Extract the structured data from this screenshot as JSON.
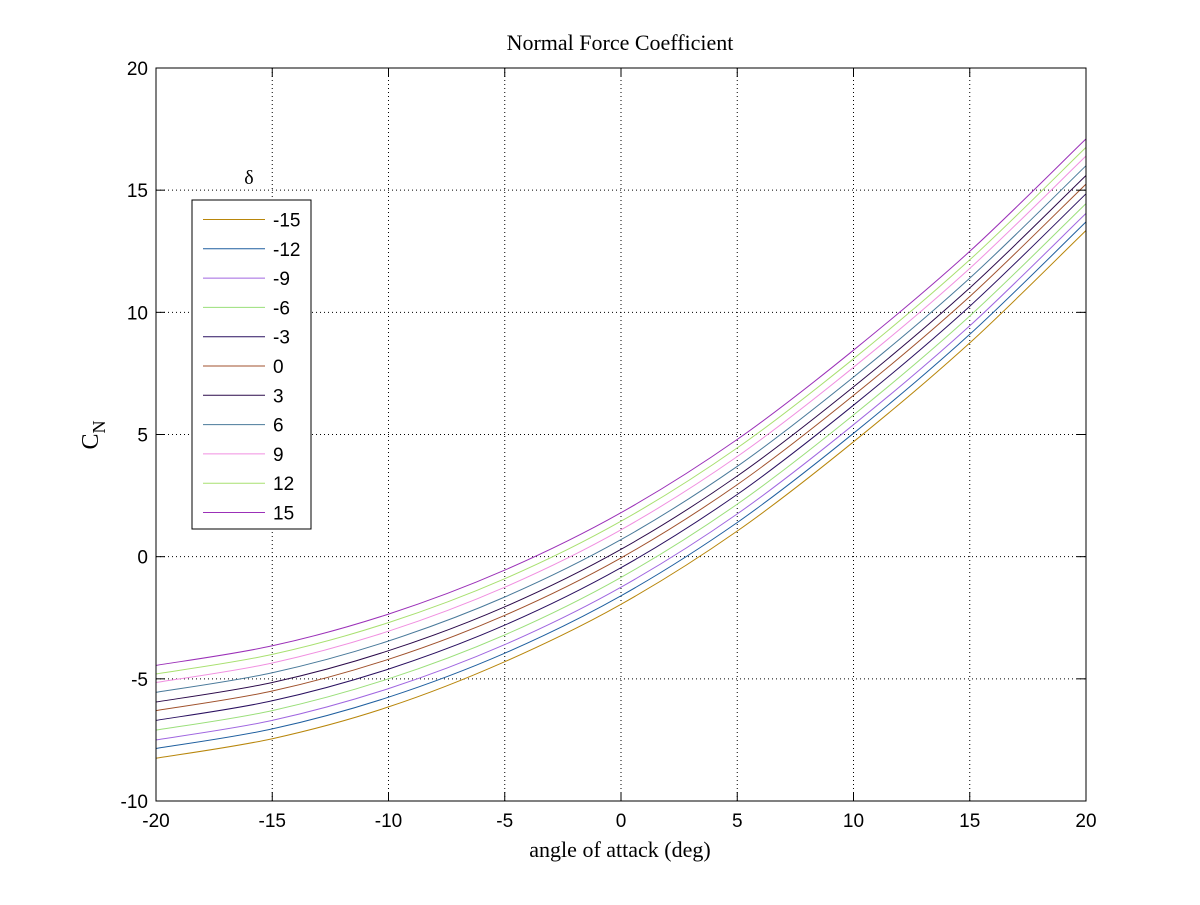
{
  "chart_data": {
    "type": "line",
    "title": "Normal Force Coefficient",
    "xlabel": "angle of attack (deg)",
    "ylabel_main": "C",
    "ylabel_sub": "N",
    "xlim": [
      -20,
      20
    ],
    "ylim": [
      -10,
      20
    ],
    "x_ticks": [
      -20,
      -15,
      -10,
      -5,
      0,
      5,
      10,
      15,
      20
    ],
    "x_tick_labels": [
      "-20",
      "-15",
      "-10",
      "-5",
      "0",
      "5",
      "10",
      "15",
      "20"
    ],
    "y_ticks": [
      -10,
      -5,
      0,
      5,
      10,
      15,
      20
    ],
    "y_tick_labels": [
      "-10",
      "-5",
      "0",
      "5",
      "10",
      "15",
      "20"
    ],
    "grid": true,
    "legend_title": "δ",
    "legend_position": "upper-left",
    "x": [
      -20,
      -15,
      -10,
      -5,
      0,
      5,
      10,
      15,
      20
    ],
    "series": [
      {
        "name": "-15",
        "color": "#b8860b",
        "values": [
          -8.25,
          -7.45,
          -6.15,
          -4.3,
          -1.95,
          1.05,
          4.7,
          8.75,
          13.35
        ]
      },
      {
        "name": "-12",
        "color": "#1f5f9f",
        "values": [
          -7.85,
          -7.05,
          -5.75,
          -3.95,
          -1.6,
          1.4,
          5.05,
          9.1,
          13.7
        ]
      },
      {
        "name": "-9",
        "color": "#a066e0",
        "values": [
          -7.5,
          -6.7,
          -5.4,
          -3.6,
          -1.25,
          1.75,
          5.4,
          9.45,
          14.05
        ]
      },
      {
        "name": "-6",
        "color": "#9adf7a",
        "values": [
          -7.1,
          -6.3,
          -5.0,
          -3.2,
          -0.85,
          2.15,
          5.8,
          9.85,
          14.45
        ]
      },
      {
        "name": "-3",
        "color": "#2a1060",
        "values": [
          -6.7,
          -5.9,
          -4.6,
          -2.8,
          -0.45,
          2.55,
          6.2,
          10.25,
          14.85
        ]
      },
      {
        "name": "0",
        "color": "#a0522d",
        "values": [
          -6.3,
          -5.5,
          -4.2,
          -2.4,
          -0.05,
          2.95,
          6.6,
          10.65,
          15.25
        ]
      },
      {
        "name": "3",
        "color": "#2c0a4a",
        "values": [
          -5.95,
          -5.15,
          -3.85,
          -2.05,
          0.3,
          3.3,
          6.95,
          11.0,
          15.6
        ]
      },
      {
        "name": "6",
        "color": "#4a7a9a",
        "values": [
          -5.55,
          -4.75,
          -3.45,
          -1.65,
          0.7,
          3.7,
          7.35,
          11.4,
          16.0
        ]
      },
      {
        "name": "9",
        "color": "#f08fe0",
        "values": [
          -5.15,
          -4.35,
          -3.05,
          -1.25,
          1.1,
          4.1,
          7.75,
          11.8,
          16.4
        ]
      },
      {
        "name": "12",
        "color": "#a8e070",
        "values": [
          -4.8,
          -4.0,
          -2.7,
          -0.9,
          1.45,
          4.45,
          8.1,
          12.15,
          16.75
        ]
      },
      {
        "name": "15",
        "color": "#9b30b8",
        "values": [
          -4.45,
          -3.65,
          -2.35,
          -0.55,
          1.8,
          4.8,
          8.45,
          12.5,
          17.1
        ]
      }
    ]
  }
}
